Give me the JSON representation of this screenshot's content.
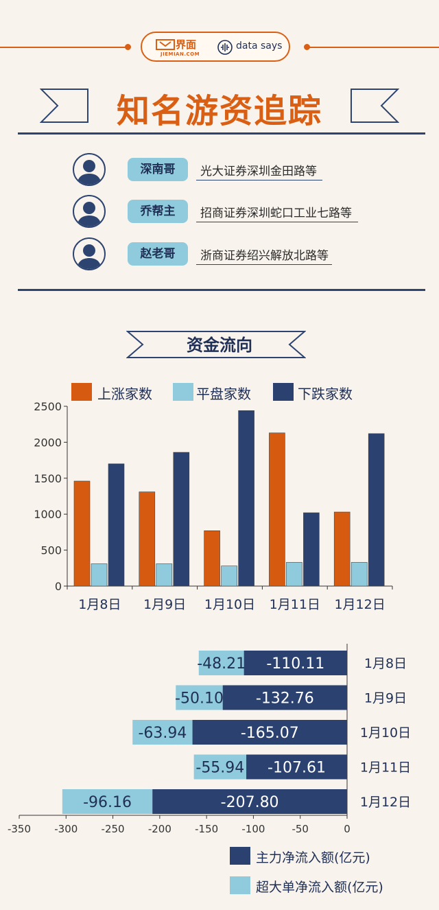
{
  "brand": {
    "logo_cn": "界面",
    "logo_en": "JIEMIAN.COM",
    "tagline": "data says"
  },
  "title": "知名游资追踪",
  "investors": [
    {
      "name": "深南哥",
      "branch": "光大证券深圳金田路等"
    },
    {
      "name": "乔帮主",
      "branch": "招商证券深圳蛇口工业七路等"
    },
    {
      "name": "赵老哥",
      "branch": "浙商证券绍兴解放北路等"
    }
  ],
  "section_title": "资金流向",
  "colors": {
    "orange": "#d65a0f",
    "light_blue": "#8fcbdc",
    "navy": "#2b4271",
    "background": "#f8f3ec"
  },
  "chart_data": [
    {
      "type": "bar",
      "categories": [
        "1月8日",
        "1月9日",
        "1月10日",
        "1月11日",
        "1月12日"
      ],
      "series": [
        {
          "name": "上涨家数",
          "color": "#d65a0f",
          "values": [
            1460,
            1310,
            770,
            2130,
            1030
          ]
        },
        {
          "name": "平盘家数",
          "color": "#8fcbdc",
          "values": [
            310,
            310,
            280,
            330,
            330
          ]
        },
        {
          "name": "下跌家数",
          "color": "#2b4271",
          "values": [
            1700,
            1860,
            2440,
            1020,
            2120
          ]
        }
      ],
      "ylim": [
        0,
        2500
      ],
      "yticks": [
        0,
        500,
        1000,
        1500,
        2000,
        2500
      ],
      "legend_position": "top",
      "grid": false
    },
    {
      "type": "bar",
      "orientation": "horizontal",
      "stacked": true,
      "categories": [
        "1月8日",
        "1月9日",
        "1月10日",
        "1月11日",
        "1月12日"
      ],
      "series": [
        {
          "name": "主力净流入额(亿元)",
          "color": "#2b4271",
          "values": [
            -110.11,
            -132.76,
            -165.07,
            -107.61,
            -207.8
          ],
          "labels": [
            "-110.11",
            "-132.76",
            "-165.07",
            "-107.61",
            "-207.80"
          ]
        },
        {
          "name": "超大单净流入额(亿元)",
          "color": "#8fcbdc",
          "values": [
            -48.21,
            -50.1,
            -63.94,
            -55.94,
            -96.16
          ],
          "labels": [
            "-48.21",
            "-50.10",
            "-63.94",
            "-55.94",
            "-96.16"
          ]
        }
      ],
      "xlim": [
        -350,
        0
      ],
      "xticks": [
        -350,
        -300,
        -250,
        -200,
        -150,
        -100,
        -50,
        0
      ],
      "legend_position": "bottom-right",
      "grid": false
    }
  ]
}
